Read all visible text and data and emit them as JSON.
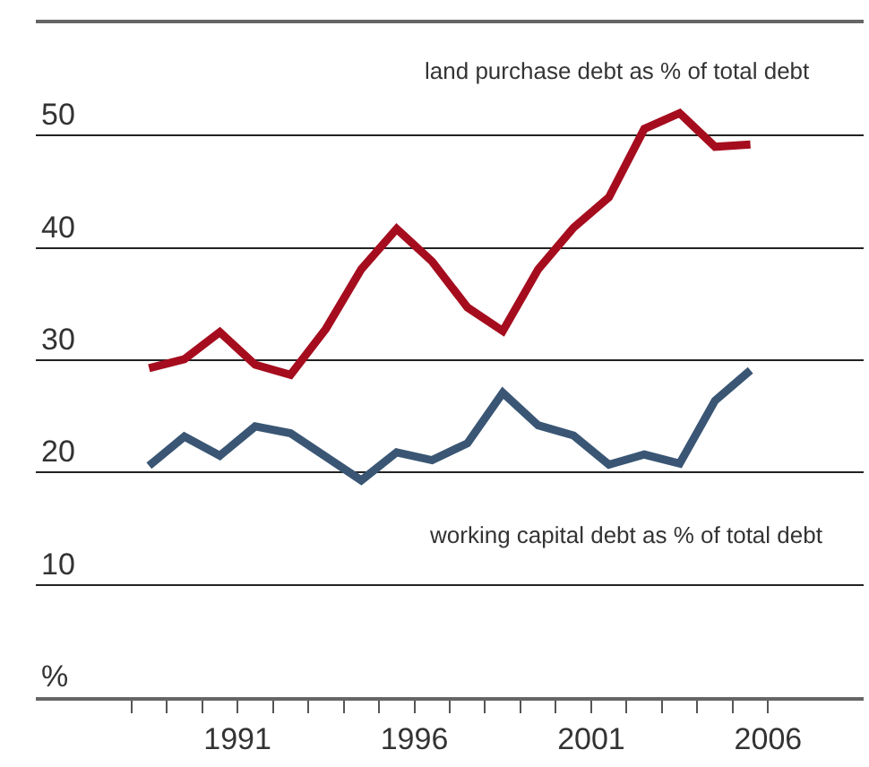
{
  "chart_data": {
    "type": "line",
    "x": [
      1988.5,
      1989.5,
      1990.5,
      1991.5,
      1992.5,
      1993.5,
      1994.5,
      1995.5,
      1996.5,
      1997.5,
      1998.5,
      1999.5,
      2000.5,
      2001.5,
      2002.5,
      2003.5,
      2004.5,
      2005.5
    ],
    "series": [
      {
        "name": "land purchase debt as % of total debt",
        "color": "#a50d1e",
        "values": [
          29.3,
          30.1,
          32.5,
          29.6,
          28.7,
          32.8,
          38.1,
          41.7,
          38.8,
          34.7,
          32.6,
          38.1,
          41.8,
          44.5,
          50.6,
          52.0,
          49.0,
          49.2
        ]
      },
      {
        "name": "working capital debt as % of total debt",
        "color": "#3a5674",
        "values": [
          20.6,
          23.2,
          21.5,
          24.1,
          23.5,
          21.4,
          19.3,
          21.8,
          21.1,
          22.6,
          27.1,
          24.2,
          23.3,
          20.7,
          21.6,
          20.8,
          26.4,
          29.1
        ]
      }
    ],
    "xlim": [
      1985.3,
      2008.7
    ],
    "xticks": [
      {
        "value": 1988,
        "label": null
      },
      {
        "value": 1989,
        "label": null
      },
      {
        "value": 1990,
        "label": null
      },
      1991,
      {
        "value": 1992,
        "label": null
      },
      {
        "value": 1993,
        "label": null
      },
      {
        "value": 1994,
        "label": null
      },
      {
        "value": 1995,
        "label": null
      },
      1996,
      {
        "value": 1997,
        "label": null
      },
      {
        "value": 1998,
        "label": null
      },
      {
        "value": 1999,
        "label": null
      },
      {
        "value": 2000,
        "label": null
      },
      2001,
      {
        "value": 2002,
        "label": null
      },
      {
        "value": 2003,
        "label": null
      },
      {
        "value": 2004,
        "label": null
      },
      {
        "value": 2005,
        "label": null
      },
      2006
    ],
    "ylim": [
      0,
      60
    ],
    "yticks": [
      {
        "value": 0,
        "label": "%"
      },
      10,
      20,
      30,
      40,
      50,
      {
        "value": 60,
        "label": null
      }
    ],
    "grid": "y",
    "marker": "none",
    "line_style": "solid",
    "legend": false
  }
}
